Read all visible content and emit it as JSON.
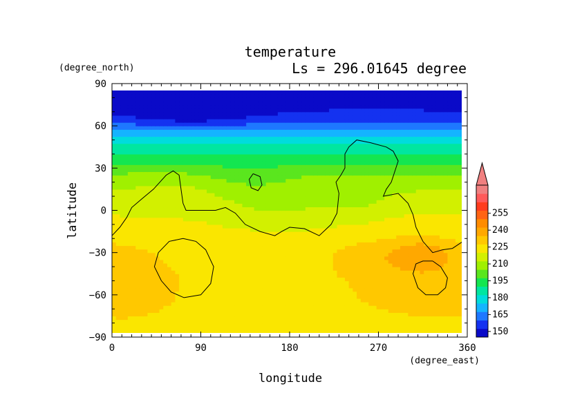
{
  "chart_data": {
    "type": "heatmap",
    "title": "temperature",
    "subtitle": "Ls = 296.01645 degree",
    "xlabel": "longitude",
    "ylabel": "latitude",
    "x_unit": "(degree_east)",
    "y_unit": "(degree_north)",
    "xlim": [
      0,
      360
    ],
    "ylim": [
      -90,
      90
    ],
    "x_ticks": [
      0,
      90,
      180,
      270,
      360
    ],
    "y_ticks": [
      -90,
      -60,
      -30,
      0,
      30,
      60,
      90
    ],
    "x_tick_labels": [
      "0",
      "90",
      "180",
      "270",
      "360"
    ],
    "y_tick_labels": [
      "−90",
      "−60",
      "−30",
      "0",
      "30",
      "60",
      "90"
    ],
    "grid": false,
    "colorbar": {
      "location": "right",
      "extend": "max",
      "level_min": 145,
      "level_step": 7.5,
      "labels": [
        "150",
        "165",
        "180",
        "195",
        "210",
        "225",
        "240",
        "255"
      ],
      "label_values": [
        150,
        165,
        180,
        195,
        210,
        225,
        240,
        255
      ],
      "colors": [
        "#0a0ac8",
        "#1432f0",
        "#1e78ff",
        "#14b4ff",
        "#00dcdc",
        "#00e6a0",
        "#14e650",
        "#5ae61e",
        "#a0f000",
        "#d2f000",
        "#fae600",
        "#ffc800",
        "#ffa800",
        "#ff8c00",
        "#ff6414",
        "#ff3c1e",
        "#ff5a5a",
        "#f08080"
      ],
      "extend_color": "#f08080"
    },
    "latitude_profile": {
      "lat": [
        -85,
        -75,
        -65,
        -55,
        -45,
        -35,
        -25,
        -15,
        -5,
        5,
        15,
        25,
        35,
        45,
        55,
        65,
        75,
        85
      ],
      "temperature": [
        224,
        225,
        226,
        226,
        226,
        225,
        224,
        222,
        220,
        216,
        212,
        206,
        196,
        185,
        172,
        156,
        148,
        146
      ]
    },
    "anomalies": [
      {
        "lon": 20,
        "lat": -50,
        "rx": 40,
        "ry": 26,
        "amp": 6
      },
      {
        "lon": 310,
        "lat": -45,
        "rx": 55,
        "ry": 28,
        "amp": 7
      },
      {
        "lon": 315,
        "lat": -30,
        "rx": 30,
        "ry": 10,
        "amp": 10
      },
      {
        "lon": 260,
        "lat": -32,
        "rx": 40,
        "ry": 12,
        "amp": 5
      },
      {
        "lon": 170,
        "lat": 2,
        "rx": 60,
        "ry": 16,
        "amp": -6
      },
      {
        "lon": 250,
        "lat": 5,
        "rx": 30,
        "ry": 12,
        "amp": -4
      },
      {
        "lon": 140,
        "lat": 25,
        "rx": 40,
        "ry": 10,
        "amp": -5
      },
      {
        "lon": 60,
        "lat": 15,
        "rx": 40,
        "ry": 10,
        "amp": 3
      },
      {
        "lon": 80,
        "lat": 65,
        "rx": 60,
        "ry": 8,
        "amp": -6
      },
      {
        "lon": 270,
        "lat": 70,
        "rx": 50,
        "ry": 6,
        "amp": 4
      },
      {
        "lon": 120,
        "lat": -40,
        "rx": 30,
        "ry": 8,
        "amp": -3
      }
    ],
    "contours": [
      {
        "lon": [
          0,
          8,
          15,
          20,
          30,
          42,
          55,
          62,
          68,
          70,
          72,
          75,
          80,
          90,
          105,
          115,
          125,
          135,
          150,
          165,
          172,
          180,
          195,
          210,
          222,
          228,
          230,
          227,
          232,
          236,
          236,
          240,
          248,
          262,
          278,
          285,
          290,
          283,
          278,
          275,
          290,
          300,
          305,
          308,
          315,
          325,
          335,
          345,
          360
        ],
        "lat": [
          -18,
          -12,
          -5,
          2,
          8,
          15,
          25,
          28,
          25,
          15,
          5,
          0,
          0,
          0,
          0,
          2,
          -2,
          -10,
          -15,
          -18,
          -15,
          -12,
          -13,
          -18,
          -10,
          -2,
          12,
          20,
          25,
          30,
          40,
          45,
          50,
          48,
          45,
          42,
          35,
          20,
          15,
          10,
          12,
          5,
          -3,
          -12,
          -22,
          -30,
          -28,
          -27,
          -20
        ]
      },
      {
        "lon": [
          143,
          150,
          152,
          148,
          141,
          139,
          143
        ],
        "lat": [
          26,
          24,
          18,
          14,
          16,
          22,
          26
        ]
      },
      {
        "lon": [
          72,
          85,
          95,
          103,
          100,
          90,
          73,
          60,
          50,
          43,
          47,
          58,
          72
        ],
        "lat": [
          -20,
          -22,
          -28,
          -40,
          -52,
          -60,
          -62,
          -58,
          -50,
          -40,
          -30,
          -22,
          -20
        ]
      },
      {
        "lon": [
          325,
          333,
          340,
          338,
          330,
          318,
          310,
          305,
          308,
          315,
          325
        ],
        "lat": [
          -36,
          -40,
          -48,
          -55,
          -60,
          -60,
          -55,
          -45,
          -38,
          -36,
          -36
        ]
      }
    ]
  }
}
